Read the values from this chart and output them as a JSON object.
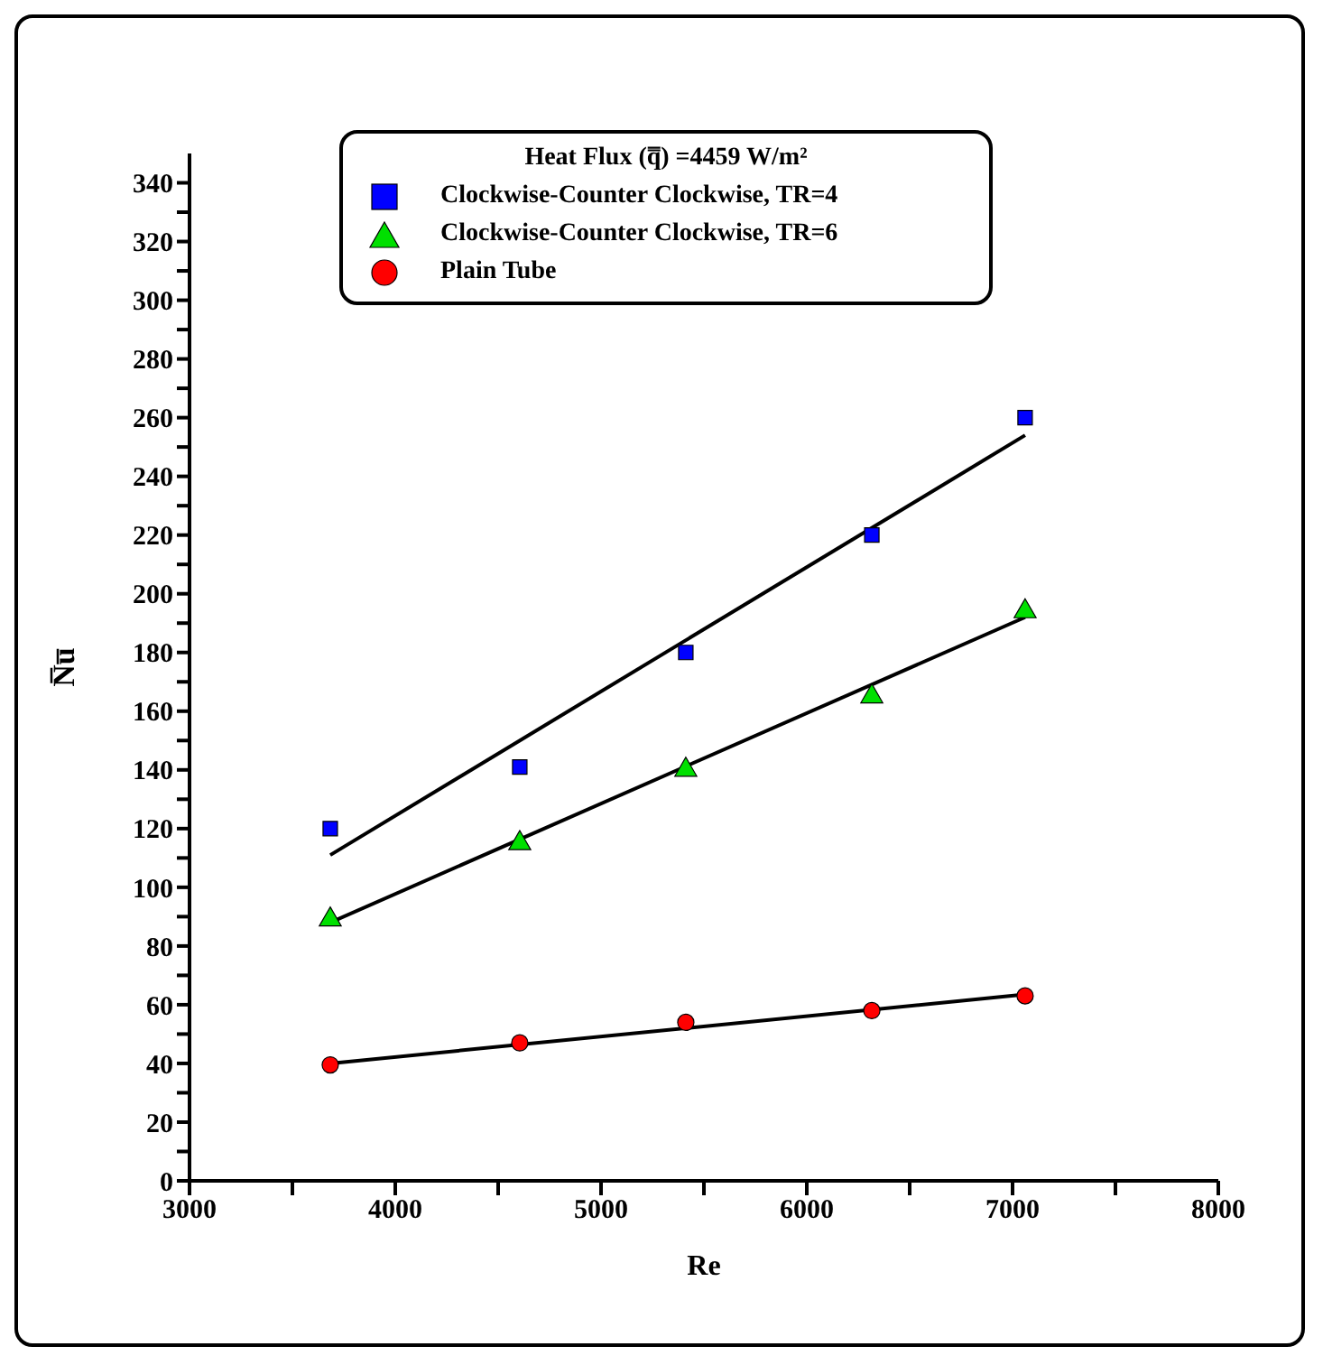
{
  "chart_data": {
    "type": "scatter",
    "xlabel": "Re",
    "ylabel": "N̅u̅",
    "legend_title": "Heat Flux (q̿) =4459 W/m²",
    "legend": "top",
    "xlim": [
      3000,
      8000
    ],
    "xticks": [
      3000,
      {
        "value": 3500,
        "label": null
      },
      4000,
      {
        "value": 4500,
        "label": null
      },
      5000,
      {
        "value": 5500,
        "label": null
      },
      6000,
      {
        "value": 6500,
        "label": null
      },
      7000,
      {
        "value": 7500,
        "label": null
      },
      8000
    ],
    "ylim": [
      0,
      350
    ],
    "yticks": [
      0,
      {
        "value": 10,
        "label": null
      },
      20,
      {
        "value": 30,
        "label": null
      },
      40,
      {
        "value": 50,
        "label": null
      },
      60,
      {
        "value": 70,
        "label": null
      },
      80,
      {
        "value": 90,
        "label": null
      },
      100,
      {
        "value": 110,
        "label": null
      },
      120,
      {
        "value": 130,
        "label": null
      },
      140,
      {
        "value": 150,
        "label": null
      },
      160,
      {
        "value": 170,
        "label": null
      },
      180,
      {
        "value": 190,
        "label": null
      },
      200,
      {
        "value": 210,
        "label": null
      },
      220,
      {
        "value": 230,
        "label": null
      },
      240,
      {
        "value": 250,
        "label": null
      },
      260,
      {
        "value": 270,
        "label": null
      },
      280,
      {
        "value": 290,
        "label": null
      },
      300,
      {
        "value": 310,
        "label": null
      },
      320,
      {
        "value": 330,
        "label": null
      },
      340
    ],
    "series": [
      {
        "name": "Clockwise-Counter Clockwise, TR=4",
        "color": "#0000ff",
        "marker": "square",
        "x": [
          3684,
          4605,
          5412,
          6316,
          7061
        ],
        "values": [
          120,
          141,
          180,
          220,
          260
        ]
      },
      {
        "name": "Clockwise-Counter Clockwise, TR=6",
        "color": "#00e000",
        "marker": "triangle",
        "x": [
          3684,
          4605,
          5412,
          6316,
          7061
        ],
        "values": [
          89,
          115,
          140,
          165,
          194
        ]
      },
      {
        "name": "Plain Tube",
        "color": "#ff0000",
        "marker": "circle",
        "x": [
          3684,
          4605,
          5412,
          6316,
          7061
        ],
        "values": [
          39.5,
          47,
          54,
          58,
          63
        ]
      },
      {
        "type": "line",
        "color": "#000000",
        "marker": "none",
        "x": [
          3684,
          7061
        ],
        "values": [
          111,
          254
        ]
      },
      {
        "type": "line",
        "color": "#000000",
        "marker": "none",
        "x": [
          3684,
          7061
        ],
        "values": [
          88,
          192
        ]
      },
      {
        "type": "line",
        "color": "#000000",
        "marker": "none",
        "x": [
          3684,
          7061
        ],
        "values": [
          40,
          63.5
        ]
      }
    ]
  }
}
